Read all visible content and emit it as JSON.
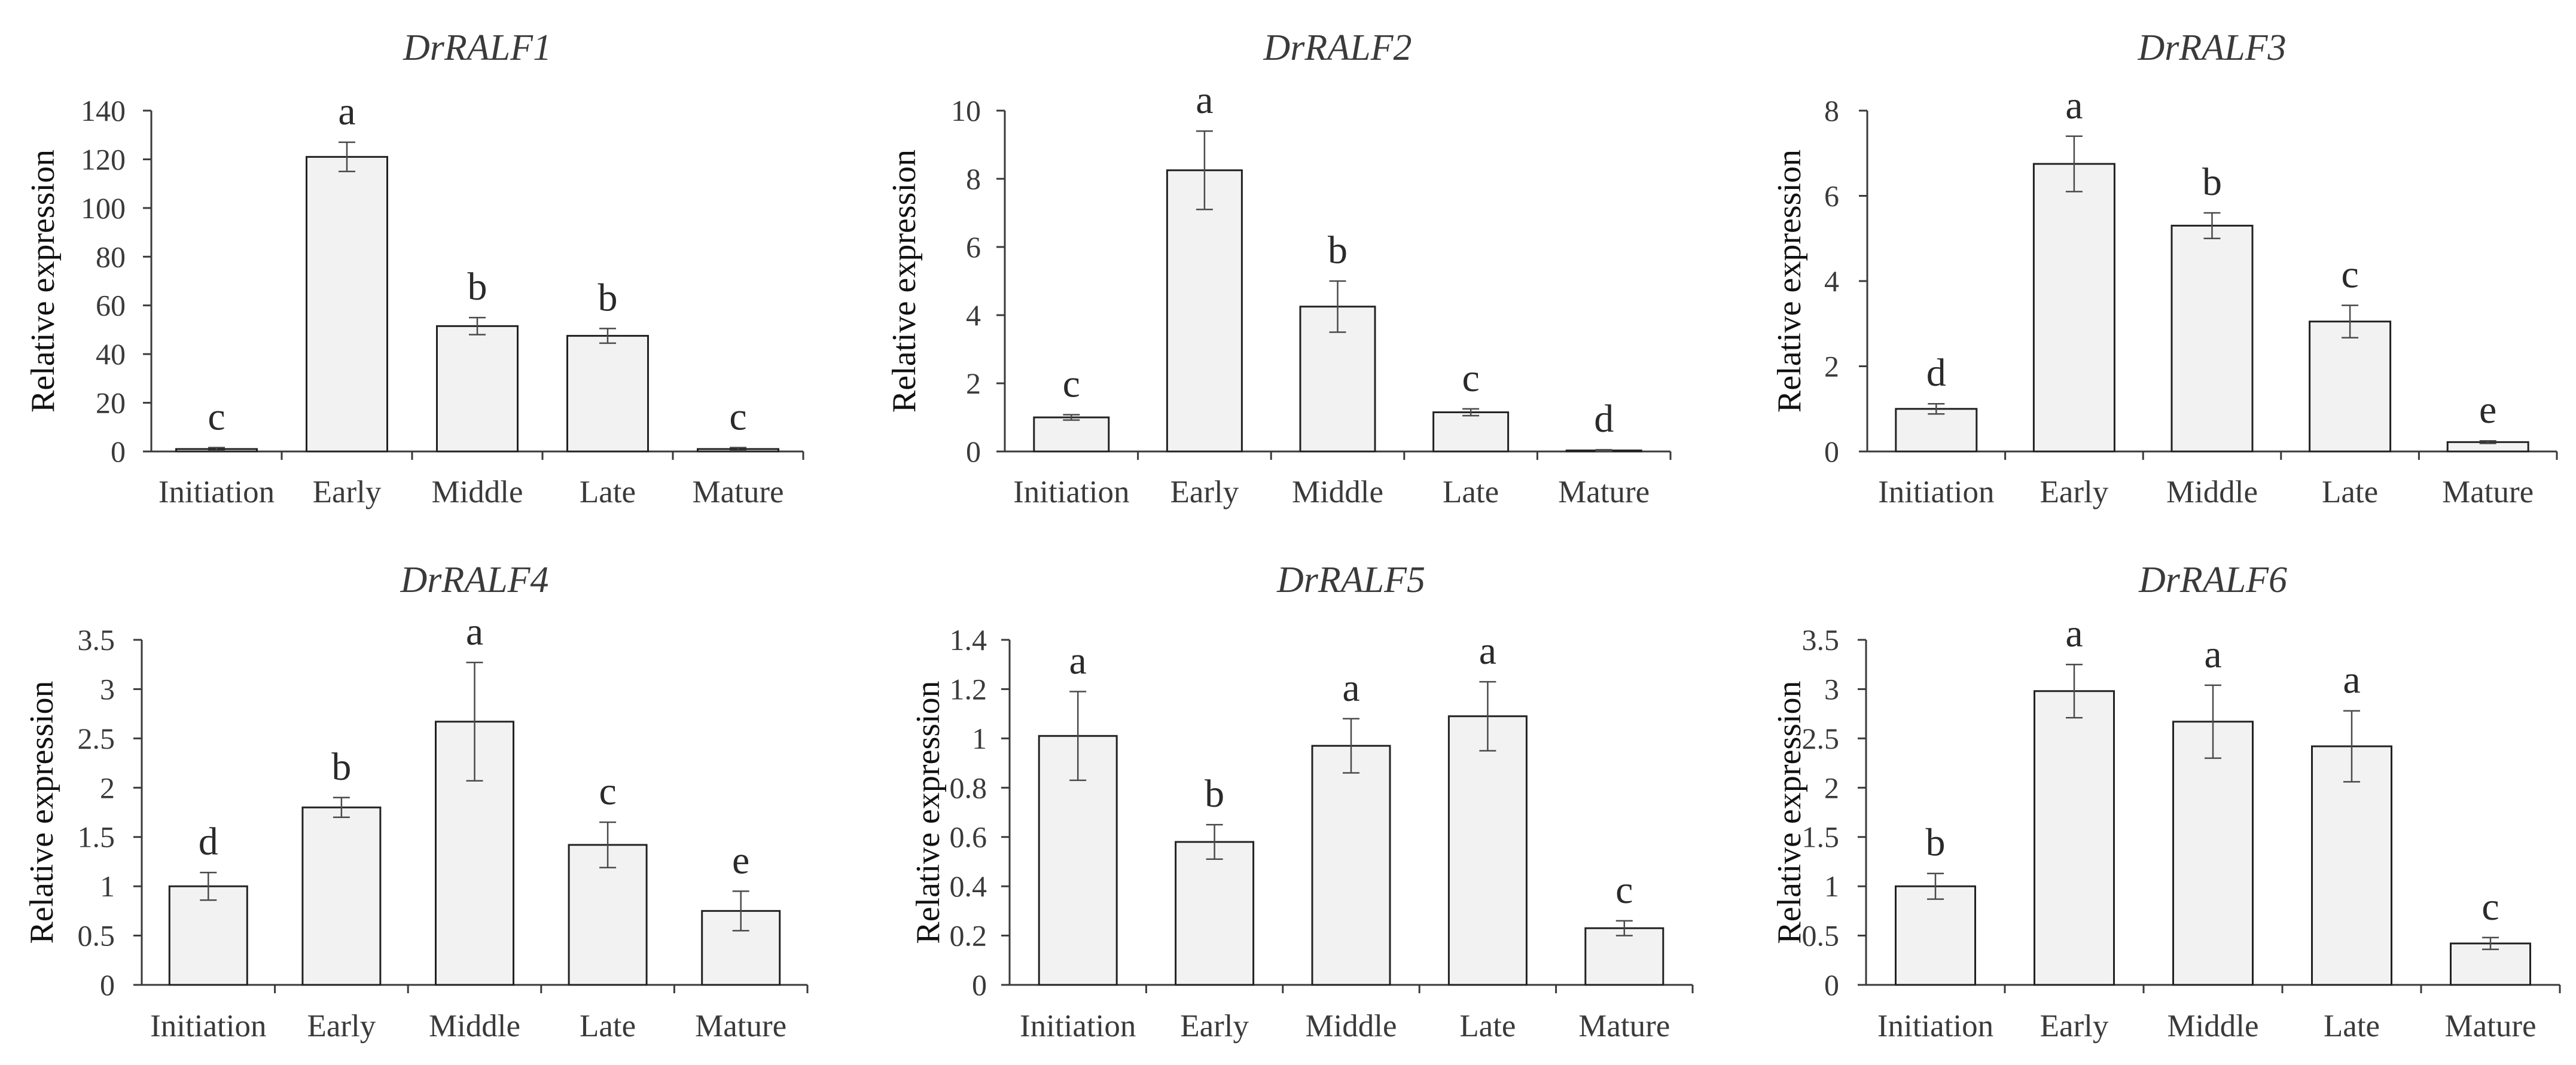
{
  "figure_type": "multi-panel bar chart",
  "chart_data": [
    {
      "type": "bar",
      "title": "DrRALF1",
      "xlabel": "",
      "ylabel": "Relative expression",
      "categories": [
        "Initiation",
        "Early",
        "Middle",
        "Late",
        "Mature"
      ],
      "values": [
        1,
        121,
        51.5,
        47.5,
        1
      ],
      "errors": [
        0.6,
        6,
        3.5,
        3,
        0.6
      ],
      "significance": [
        "c",
        "a",
        "b",
        "b",
        "c"
      ],
      "ylim": [
        0,
        140
      ],
      "yticks": [
        0,
        20,
        40,
        60,
        80,
        100,
        120,
        140
      ],
      "ytick_labels": [
        "0",
        "20",
        "40",
        "60",
        "80",
        "100",
        "120",
        "140"
      ],
      "grid": false
    },
    {
      "type": "bar",
      "title": "DrRALF2",
      "xlabel": "",
      "ylabel": "Relative expression",
      "categories": [
        "Initiation",
        "Early",
        "Middle",
        "Late",
        "Mature"
      ],
      "values": [
        1,
        8.25,
        4.25,
        1.15,
        0.03
      ],
      "errors": [
        0.08,
        1.15,
        0.75,
        0.1,
        0.02
      ],
      "significance": [
        "c",
        "a",
        "b",
        "c",
        "d"
      ],
      "ylim": [
        0,
        10
      ],
      "yticks": [
        0,
        2,
        4,
        6,
        8,
        10
      ],
      "ytick_labels": [
        "0",
        "2",
        "4",
        "6",
        "8",
        "10"
      ],
      "grid": false
    },
    {
      "type": "bar",
      "title": "DrRALF3",
      "xlabel": "",
      "ylabel": "Relative expression",
      "categories": [
        "Initiation",
        "Early",
        "Middle",
        "Late",
        "Mature"
      ],
      "values": [
        1,
        6.75,
        5.3,
        3.05,
        0.22
      ],
      "errors": [
        0.12,
        0.65,
        0.3,
        0.38,
        0.03
      ],
      "significance": [
        "d",
        "a",
        "b",
        "c",
        "e"
      ],
      "ylim": [
        0,
        8
      ],
      "yticks": [
        0,
        2,
        4,
        6,
        8
      ],
      "ytick_labels": [
        "0",
        "2",
        "4",
        "6",
        "8"
      ],
      "grid": false
    },
    {
      "type": "bar",
      "title": "DrRALF4",
      "xlabel": "",
      "ylabel": "Relative expression",
      "categories": [
        "Initiation",
        "Early",
        "Middle",
        "Late",
        "Mature"
      ],
      "values": [
        1,
        1.8,
        2.67,
        1.42,
        0.75
      ],
      "errors": [
        0.14,
        0.1,
        0.6,
        0.23,
        0.2
      ],
      "significance": [
        "d",
        "b",
        "a",
        "c",
        "e"
      ],
      "ylim": [
        0,
        3.5
      ],
      "yticks": [
        0,
        0.5,
        1,
        1.5,
        2,
        2.5,
        3,
        3.5
      ],
      "ytick_labels": [
        "0",
        "0.5",
        "1",
        "1.5",
        "2",
        "2.5",
        "3",
        "3.5"
      ],
      "grid": false
    },
    {
      "type": "bar",
      "title": "DrRALF5",
      "xlabel": "",
      "ylabel": "Relative expression",
      "categories": [
        "Initiation",
        "Early",
        "Middle",
        "Late",
        "Mature"
      ],
      "values": [
        1.01,
        0.58,
        0.97,
        1.09,
        0.23
      ],
      "errors": [
        0.18,
        0.07,
        0.11,
        0.14,
        0.03
      ],
      "significance": [
        "a",
        "b",
        "a",
        "a",
        "c"
      ],
      "ylim": [
        0,
        1.4
      ],
      "yticks": [
        0,
        0.2,
        0.4,
        0.6,
        0.8,
        1,
        1.2,
        1.4
      ],
      "ytick_labels": [
        "0",
        "0.2",
        "0.4",
        "0.6",
        "0.8",
        "1",
        "1.2",
        "1.4"
      ],
      "grid": false
    },
    {
      "type": "bar",
      "title": "DrRALF6",
      "xlabel": "",
      "ylabel": "Relative expression",
      "categories": [
        "Initiation",
        "Early",
        "Middle",
        "Late",
        "Mature"
      ],
      "values": [
        1,
        2.98,
        2.67,
        2.42,
        0.42
      ],
      "errors": [
        0.13,
        0.27,
        0.37,
        0.36,
        0.06
      ],
      "significance": [
        "b",
        "a",
        "a",
        "a",
        "c"
      ],
      "ylim": [
        0,
        3.5
      ],
      "yticks": [
        0,
        0.5,
        1,
        1.5,
        2,
        2.5,
        3,
        3.5
      ],
      "ytick_labels": [
        "0",
        "0.5",
        "1",
        "1.5",
        "2",
        "2.5",
        "3",
        "3.5"
      ],
      "grid": false
    }
  ]
}
